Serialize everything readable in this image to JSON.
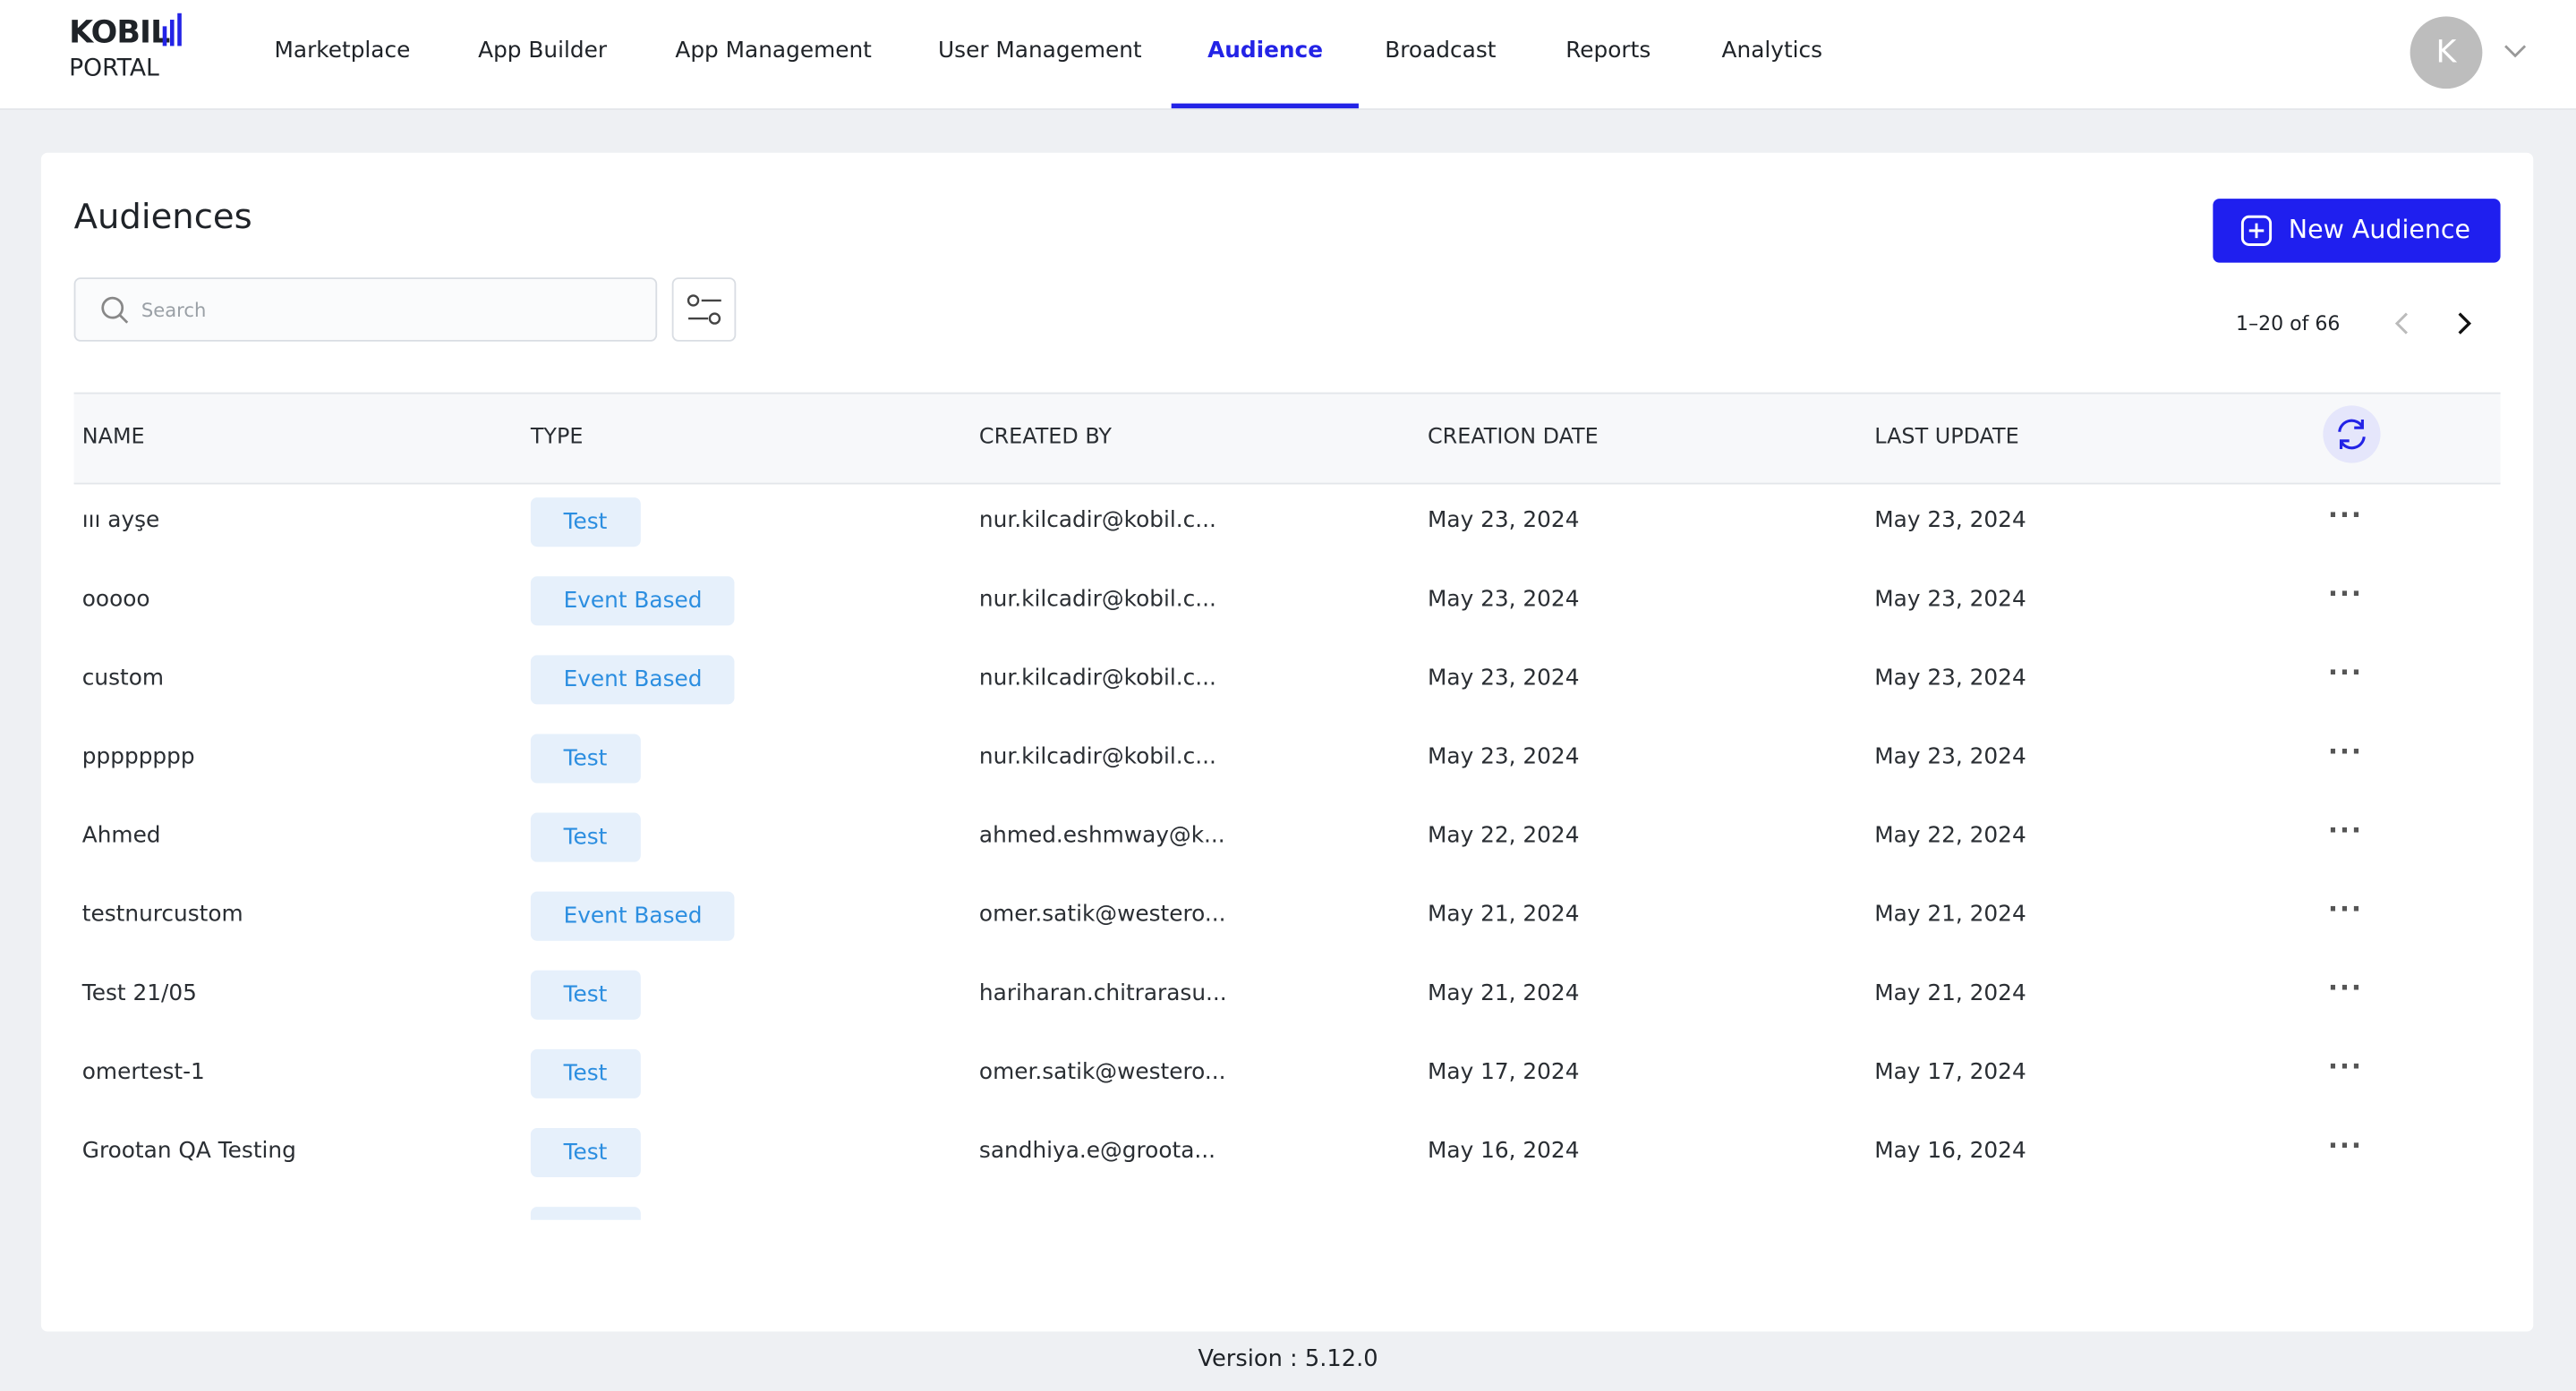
{
  "header": {
    "logo_top": "KOBIL",
    "logo_bottom": "PORTAL",
    "nav": [
      "Marketplace",
      "App Builder",
      "App Management",
      "User Management",
      "Audience",
      "Broadcast",
      "Reports",
      "Analytics"
    ],
    "active_nav": 4,
    "avatar": "K"
  },
  "page": {
    "title": "Audiences",
    "new_button": "New Audience",
    "search_placeholder": "Search",
    "pagination": "1–20 of 66"
  },
  "table": {
    "columns": [
      "NAME",
      "TYPE",
      "CREATED BY",
      "CREATION DATE",
      "LAST UPDATE"
    ],
    "rows": [
      [
        "ııı ayşe",
        "Test",
        "nur.kilcadir@kobil.c...",
        "May 23, 2024",
        "May 23, 2024"
      ],
      [
        "ooooo",
        "Event Based",
        "nur.kilcadir@kobil.c...",
        "May 23, 2024",
        "May 23, 2024"
      ],
      [
        "custom",
        "Event Based",
        "nur.kilcadir@kobil.c...",
        "May 23, 2024",
        "May 23, 2024"
      ],
      [
        "pppppppp",
        "Test",
        "nur.kilcadir@kobil.c...",
        "May 23, 2024",
        "May 23, 2024"
      ],
      [
        "Ahmed",
        "Test",
        "ahmed.eshmway@k...",
        "May 22, 2024",
        "May 22, 2024"
      ],
      [
        "testnurcustom",
        "Event Based",
        "omer.satik@westero...",
        "May 21, 2024",
        "May 21, 2024"
      ],
      [
        "Test 21/05",
        "Test",
        "hariharan.chitrarasu...",
        "May 21, 2024",
        "May 21, 2024"
      ],
      [
        "omertest-1",
        "Test",
        "omer.satik@westero...",
        "May 17, 2024",
        "May 17, 2024"
      ],
      [
        "Grootan QA Testing",
        "Test",
        "sandhiya.e@groota...",
        "May 16, 2024",
        "May 16, 2024"
      ]
    ]
  },
  "footer": {
    "version": "Version : 5.12.0"
  }
}
